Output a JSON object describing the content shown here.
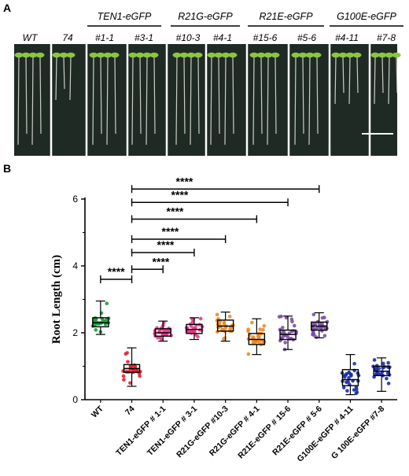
{
  "panel_a": {
    "letter": "A",
    "group_headers": [
      "TEN1-eGFP",
      "R21G-eGFP",
      "R21E-eGFP",
      "G100E-eGFP"
    ],
    "lane_labels": [
      "WT",
      "74",
      "#1-1",
      "#3-1",
      "#10-3",
      "#4-1",
      "#15-6",
      "#5-6",
      "#4-11",
      "#7-8"
    ],
    "scale_bar_label": "1 cm",
    "photo_background": "#1f2a25",
    "seedling_leaf_color": "#8cc63f",
    "divider_color": "#ffffff"
  },
  "panel_b": {
    "letter": "B",
    "significance_label": "****"
  },
  "chart_data": {
    "type": "box",
    "categories": [
      "WT",
      "74",
      "TEN1-eGFP # 1-1",
      "TEN1-eGFP # 3-1",
      "R21G-eGFP #10-3",
      "R21G-eGFP # 4-1",
      "R21E-eGFP # 15-6",
      "R21E-eGFP # 5-6",
      "G100E-eGFP # 4-11",
      "G 100E-eGFP #7-8"
    ],
    "ylabel": "Root Length (cm)",
    "xlabel": "",
    "ylim": [
      0,
      6
    ],
    "yticks": [
      0,
      2,
      4,
      6
    ],
    "colors": [
      "#1a9e3a",
      "#e8202a",
      "#e8388a",
      "#e8388a",
      "#f08a1e",
      "#f08a1e",
      "#7b4fa6",
      "#7b4fa6",
      "#1c2ea8",
      "#1c2ea8"
    ],
    "boxes": [
      {
        "min": 1.95,
        "q1": 2.18,
        "median": 2.3,
        "q3": 2.45,
        "max": 2.95
      },
      {
        "min": 0.4,
        "q1": 0.82,
        "median": 0.93,
        "q3": 1.05,
        "max": 1.55
      },
      {
        "min": 1.75,
        "q1": 1.9,
        "median": 2.0,
        "q3": 2.12,
        "max": 2.35
      },
      {
        "min": 1.8,
        "q1": 1.98,
        "median": 2.1,
        "q3": 2.25,
        "max": 2.45
      },
      {
        "min": 1.75,
        "q1": 2.05,
        "median": 2.2,
        "q3": 2.38,
        "max": 2.62
      },
      {
        "min": 1.35,
        "q1": 1.65,
        "median": 1.8,
        "q3": 1.98,
        "max": 2.42
      },
      {
        "min": 1.5,
        "q1": 1.8,
        "median": 1.95,
        "q3": 2.08,
        "max": 2.5
      },
      {
        "min": 1.85,
        "q1": 2.08,
        "median": 2.2,
        "q3": 2.32,
        "max": 2.6
      },
      {
        "min": 0.15,
        "q1": 0.42,
        "median": 0.6,
        "q3": 0.9,
        "max": 1.35
      },
      {
        "min": 0.25,
        "q1": 0.72,
        "median": 0.85,
        "q3": 1.0,
        "max": 1.25
      }
    ],
    "comparisons": [
      {
        "from": "WT",
        "to": "74",
        "y": 3.6,
        "label": "****"
      },
      {
        "from": "74",
        "to": "TEN1-eGFP # 1-1",
        "y": 3.9,
        "label": "****"
      },
      {
        "from": "74",
        "to": "TEN1-eGFP # 3-1",
        "y": 4.4,
        "label": "****"
      },
      {
        "from": "74",
        "to": "R21G-eGFP #10-3",
        "y": 4.8,
        "label": "****"
      },
      {
        "from": "74",
        "to": "R21G-eGFP # 4-1",
        "y": 5.4,
        "label": "****"
      },
      {
        "from": "74",
        "to": "R21E-eGFP # 15-6",
        "y": 5.9,
        "label": "****"
      },
      {
        "from": "74",
        "to": "R21E-eGFP # 5-6",
        "y": 6.3,
        "label": "****"
      }
    ]
  }
}
